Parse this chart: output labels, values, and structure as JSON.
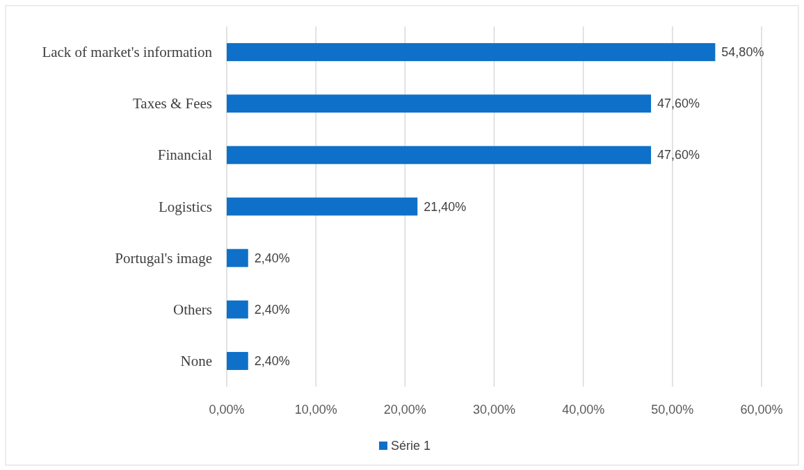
{
  "chart_data": {
    "type": "bar",
    "orientation": "horizontal",
    "categories": [
      "Lack of market's information",
      "Taxes & Fees",
      "Financial",
      "Logistics",
      "Portugal's image",
      "Others",
      "None"
    ],
    "series": [
      {
        "name": "Série 1",
        "color": "#0e70c8",
        "values": [
          54.8,
          47.6,
          47.6,
          21.4,
          2.4,
          2.4,
          2.4
        ],
        "value_labels": [
          "54,80%",
          "47,60%",
          "47,60%",
          "21,40%",
          "2,40%",
          "2,40%",
          "2,40%"
        ]
      }
    ],
    "xlim": [
      0,
      60
    ],
    "xticks": [
      {
        "value": 0,
        "label": "0,00%"
      },
      {
        "value": 10,
        "label": "10,00%"
      },
      {
        "value": 20,
        "label": "20,00%"
      },
      {
        "value": 30,
        "label": "30,00%"
      },
      {
        "value": 40,
        "label": "40,00%"
      },
      {
        "value": 50,
        "label": "50,00%"
      },
      {
        "value": 60,
        "label": "60,00%"
      }
    ],
    "grid": "x",
    "legend": "bottom"
  }
}
